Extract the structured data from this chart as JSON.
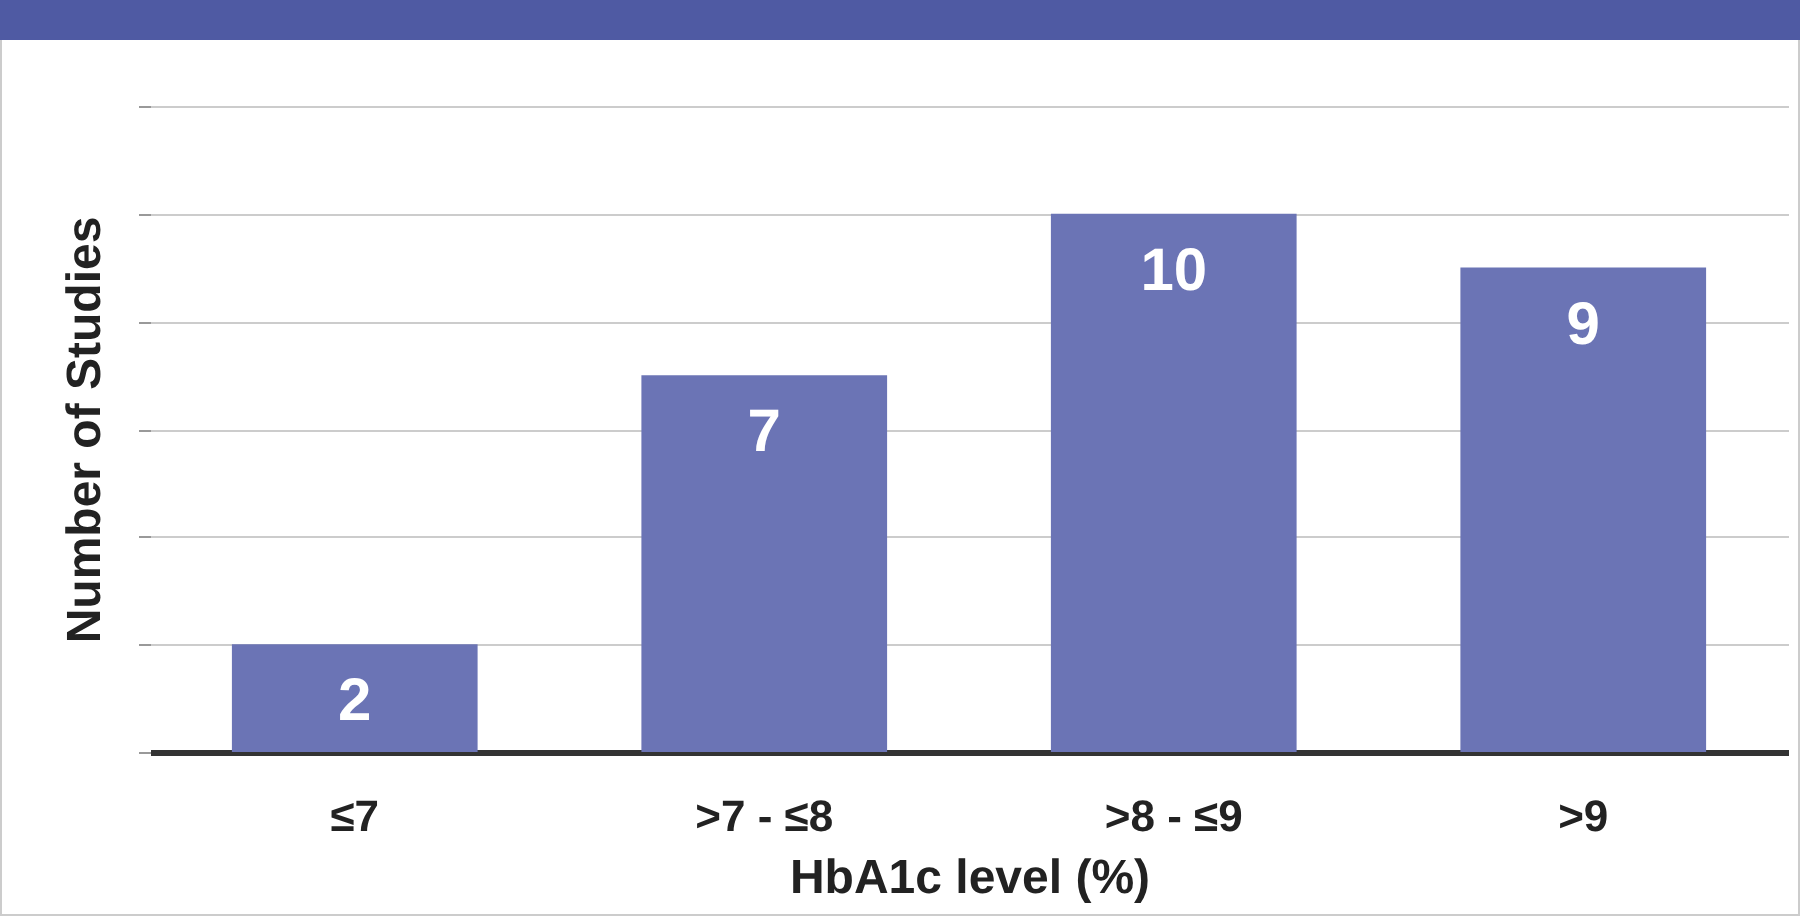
{
  "chart_data": {
    "type": "bar",
    "xlabel": "HbA1c level (%)",
    "ylabel": "Number of Studies",
    "categories": [
      "≤7",
      ">7 - ≤8",
      ">8 - ≤9",
      ">9"
    ],
    "values": [
      2,
      7,
      10,
      9
    ],
    "color": "#6b74b5",
    "ylim": [
      0,
      12
    ],
    "yticks": [
      {
        "value": 0,
        "label": null
      },
      {
        "value": 2,
        "label": null
      },
      {
        "value": 4,
        "label": null
      },
      {
        "value": 6,
        "label": null
      },
      {
        "value": 8,
        "label": null
      },
      {
        "value": 10,
        "label": null
      },
      {
        "value": 12,
        "label": null
      }
    ],
    "tick_labels": "x",
    "grid": "y",
    "data_labels": true
  }
}
